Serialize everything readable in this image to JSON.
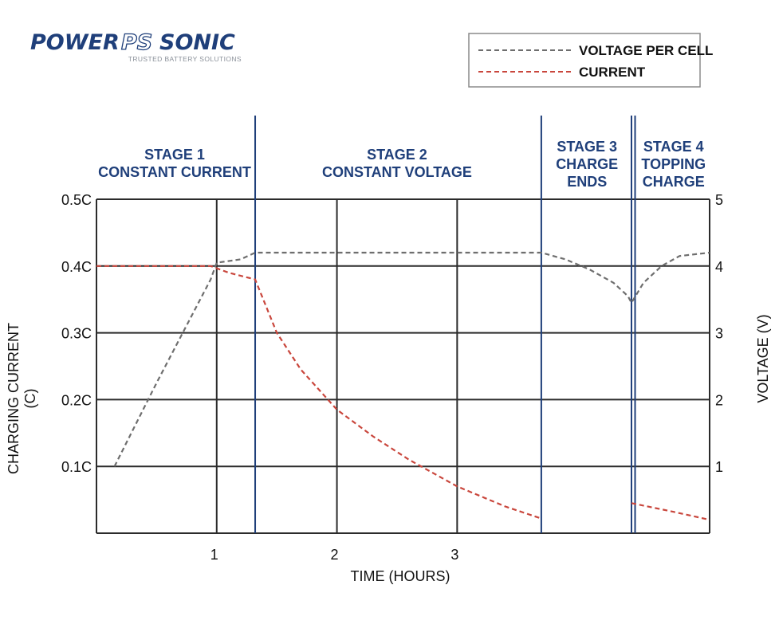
{
  "brand": {
    "name_left": "POWER",
    "name_mid": "PS",
    "name_right": "SONIC",
    "tagline": "TRUSTED BATTERY SOLUTIONS"
  },
  "colors": {
    "axis": "#2b2b2b",
    "grid": "#2b2b2b",
    "stage_line": "#1f3f7a",
    "stage_text": "#1f3f7a",
    "voltage": "#6e6e6e",
    "current": "#c9463c",
    "logo_blue": "#1f3f7a",
    "logo_gray": "#8a9099"
  },
  "chart_data": {
    "type": "line",
    "xlabel": "TIME (HOURS)",
    "ylabel_left": [
      "CHARGING CURRENT",
      "(C)"
    ],
    "ylabel_right": "VOLTAGE (V)",
    "xlim": [
      0,
      5.1
    ],
    "ylim_left": [
      0,
      0.5
    ],
    "ylim_right": [
      0,
      5
    ],
    "x_ticks": [
      {
        "value": 1,
        "label": "1"
      },
      {
        "value": 2,
        "label": "2"
      },
      {
        "value": 3,
        "label": "3"
      }
    ],
    "y_left_ticks": [
      {
        "value": 0.1,
        "label": "0.1C"
      },
      {
        "value": 0.2,
        "label": "0.2C"
      },
      {
        "value": 0.3,
        "label": "0.3C"
      },
      {
        "value": 0.4,
        "label": "0.4C"
      },
      {
        "value": 0.5,
        "label": "0.5C"
      }
    ],
    "y_right_ticks": [
      {
        "value": 1,
        "label": "1"
      },
      {
        "value": 2,
        "label": "2"
      },
      {
        "value": 3,
        "label": "3"
      },
      {
        "value": 4,
        "label": "4"
      },
      {
        "value": 5,
        "label": "5"
      }
    ],
    "grid": true,
    "stage_boundaries": [
      1.32,
      3.7,
      4.45,
      4.48
    ],
    "stages": [
      {
        "lines": [
          "STAGE 1",
          "CONSTANT CURRENT"
        ],
        "x_center": 0.65
      },
      {
        "lines": [
          "STAGE 2",
          "CONSTANT VOLTAGE"
        ],
        "x_center": 2.5
      },
      {
        "lines": [
          "STAGE 3",
          "CHARGE",
          "ENDS"
        ],
        "x_center": 4.08
      },
      {
        "lines": [
          "STAGE 4",
          "TOPPING",
          "CHARGE"
        ],
        "x_center": 4.8
      }
    ],
    "legend_position": "top-right",
    "series": [
      {
        "name": "VOLTAGE PER CELL",
        "axis": "right",
        "points": [
          [
            0.15,
            1.0
          ],
          [
            0.5,
            2.25
          ],
          [
            0.95,
            3.8
          ],
          [
            1.0,
            4.05
          ],
          [
            1.2,
            4.1
          ],
          [
            1.32,
            4.2
          ],
          [
            3.7,
            4.2
          ],
          [
            3.9,
            4.1
          ],
          [
            4.1,
            3.95
          ],
          [
            4.3,
            3.75
          ],
          [
            4.42,
            3.55
          ],
          [
            4.45,
            3.45
          ],
          [
            4.55,
            3.75
          ],
          [
            4.7,
            4.0
          ],
          [
            4.85,
            4.15
          ],
          [
            5.1,
            4.2
          ]
        ]
      },
      {
        "name": "CURRENT",
        "axis": "left",
        "points": [
          [
            0.0,
            0.4
          ],
          [
            0.95,
            0.4
          ],
          [
            1.1,
            0.39
          ],
          [
            1.32,
            0.38
          ],
          [
            1.5,
            0.3
          ],
          [
            1.7,
            0.245
          ],
          [
            2.0,
            0.185
          ],
          [
            2.3,
            0.145
          ],
          [
            2.6,
            0.11
          ],
          [
            3.0,
            0.07
          ],
          [
            3.4,
            0.04
          ],
          [
            3.7,
            0.022
          ],
          [
            4.45,
            0.045
          ],
          [
            4.8,
            0.032
          ],
          [
            5.1,
            0.02
          ]
        ],
        "segments": [
          [
            0,
            12
          ],
          [
            12,
            15
          ]
        ]
      }
    ]
  }
}
